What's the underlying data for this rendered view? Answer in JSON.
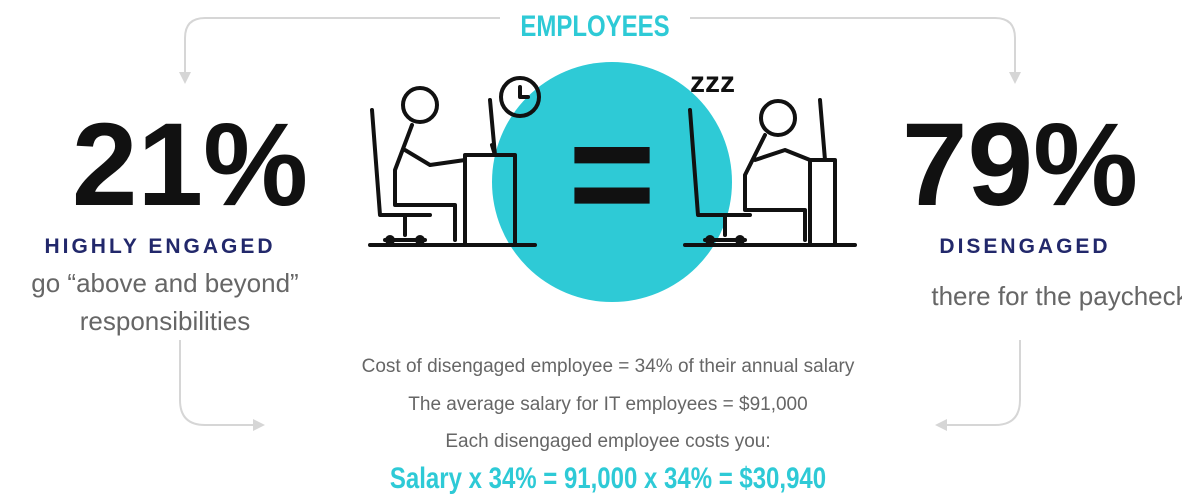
{
  "title": "EMPLOYEES",
  "left": {
    "stat": "21%",
    "label": "HIGHLY ENGAGED",
    "description": [
      "go “above and beyond”",
      "responsibilities"
    ]
  },
  "right": {
    "stat": "79%",
    "label": "DISENGAGED",
    "description": [
      "there for the paycheck"
    ],
    "icon_text": "zzz"
  },
  "equals": "=",
  "cost": {
    "lines": [
      "Cost of disengaged employee = 34% of their annual salary",
      "The average salary for IT employees = $91,000",
      "Each disengaged employee costs you:"
    ],
    "formula": "Salary x 34% = 91,000 x 34% = $30,940"
  }
}
